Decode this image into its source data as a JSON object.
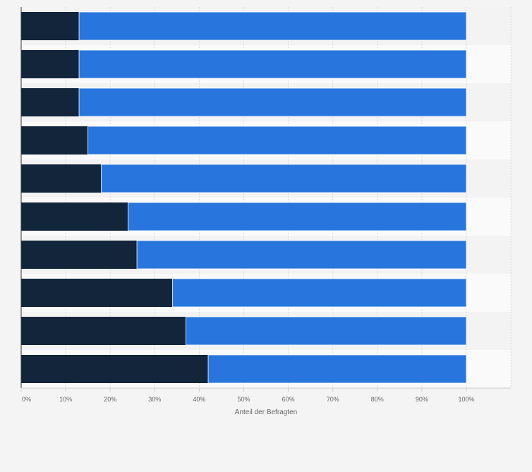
{
  "chart_data": {
    "type": "bar",
    "orientation": "horizontal",
    "stacked": true,
    "series": [
      {
        "values": [
          13,
          13,
          13,
          15,
          18,
          24,
          26,
          34,
          37,
          42
        ],
        "color": "#13253b"
      },
      {
        "values": [
          87,
          87,
          87,
          85,
          82,
          76,
          74,
          66,
          63,
          58
        ],
        "color": "#2876dd"
      }
    ],
    "xlabel": "Anteil der Befragten",
    "xlim": [
      0,
      110
    ],
    "x_ticks": [
      "0%",
      "10%",
      "20%",
      "30%",
      "40%",
      "50%",
      "60%",
      "70%",
      "80%",
      "90%",
      "100%"
    ],
    "grid": true,
    "legend": "none"
  }
}
